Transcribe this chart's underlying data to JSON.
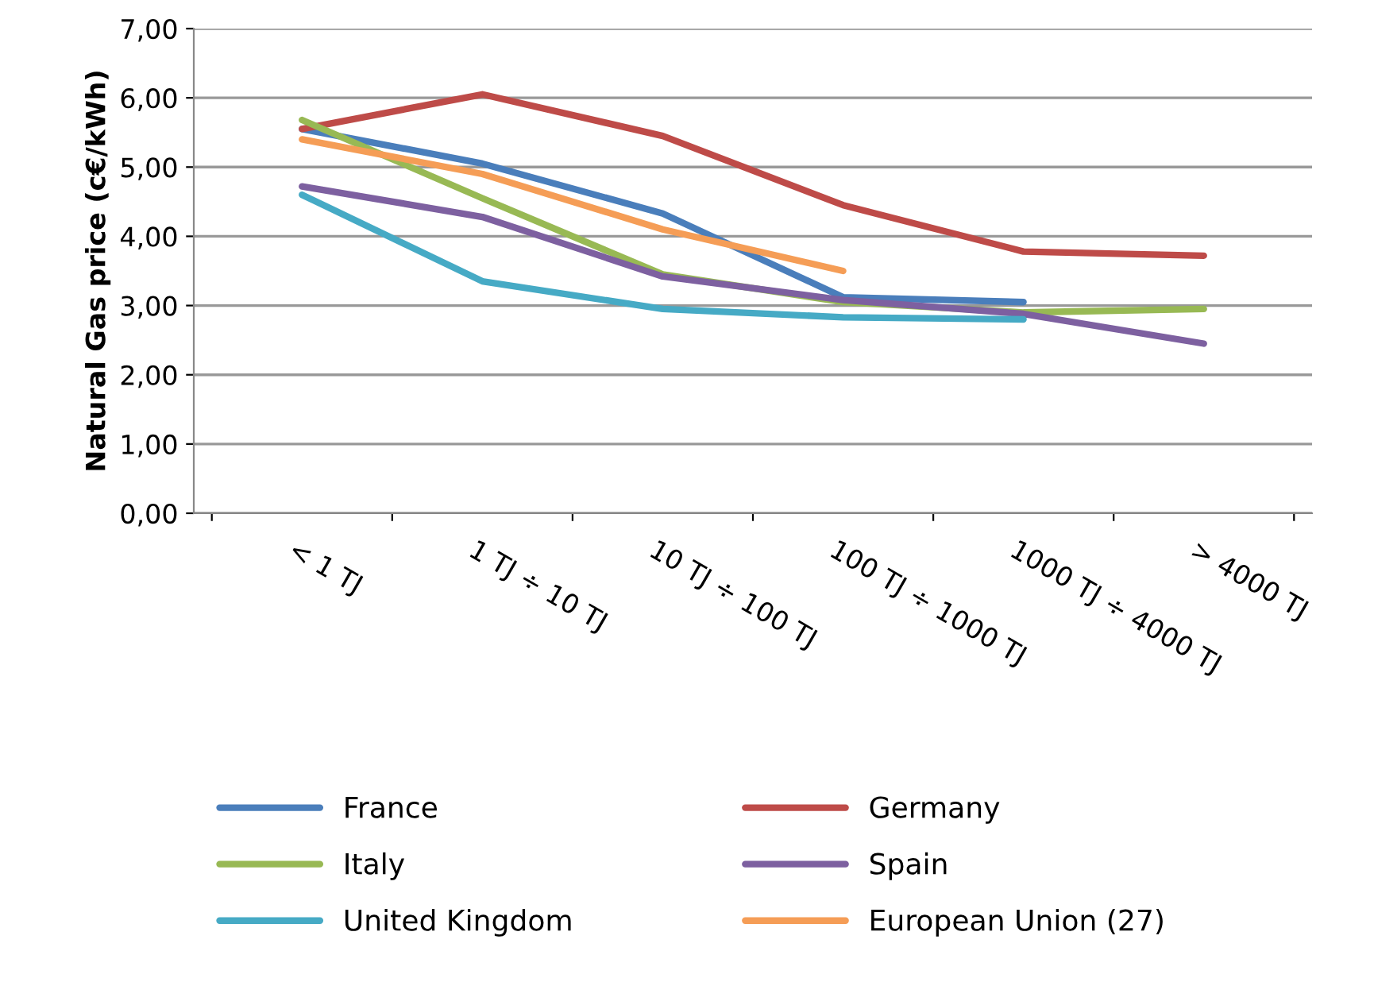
{
  "chart_data": {
    "type": "line",
    "ylabel": "Natural Gas price (c€/kWh)",
    "categories": [
      "< 1 TJ",
      "1 TJ ÷ 10 TJ",
      "10 TJ ÷ 100 TJ",
      "100 TJ ÷ 1000 TJ",
      "1000 TJ ÷ 4000 TJ",
      "> 4000 TJ"
    ],
    "series": [
      {
        "name": "France",
        "color": "#4a7ebb",
        "values": [
          5.55,
          5.05,
          4.33,
          3.12,
          3.05,
          null
        ]
      },
      {
        "name": "Germany",
        "color": "#be4b48",
        "values": [
          5.55,
          6.05,
          5.45,
          4.45,
          3.78,
          3.72
        ]
      },
      {
        "name": "Italy",
        "color": "#98b954",
        "values": [
          5.68,
          4.55,
          3.45,
          3.05,
          2.9,
          2.95
        ]
      },
      {
        "name": "Spain",
        "color": "#7d60a0",
        "values": [
          4.72,
          4.28,
          3.42,
          3.08,
          2.88,
          2.45
        ]
      },
      {
        "name": "United Kingdom",
        "color": "#46aac5",
        "values": [
          4.6,
          3.35,
          2.95,
          2.83,
          2.8,
          null
        ]
      },
      {
        "name": "European Union (27)",
        "color": "#f59d56",
        "values": [
          5.4,
          4.9,
          4.1,
          3.5,
          null,
          null
        ]
      }
    ],
    "ylim": [
      0,
      7
    ],
    "yticks": [
      {
        "value": 0,
        "label": "0,00"
      },
      {
        "value": 1,
        "label": "1,00"
      },
      {
        "value": 2,
        "label": "2,00"
      },
      {
        "value": 3,
        "label": "3,00"
      },
      {
        "value": 4,
        "label": "4,00"
      },
      {
        "value": 5,
        "label": "5,00"
      },
      {
        "value": 6,
        "label": "6,00"
      },
      {
        "value": 7,
        "label": "7,00"
      }
    ],
    "grid": "y",
    "legend": "bottom",
    "marker": "none",
    "line_style": "solid"
  }
}
